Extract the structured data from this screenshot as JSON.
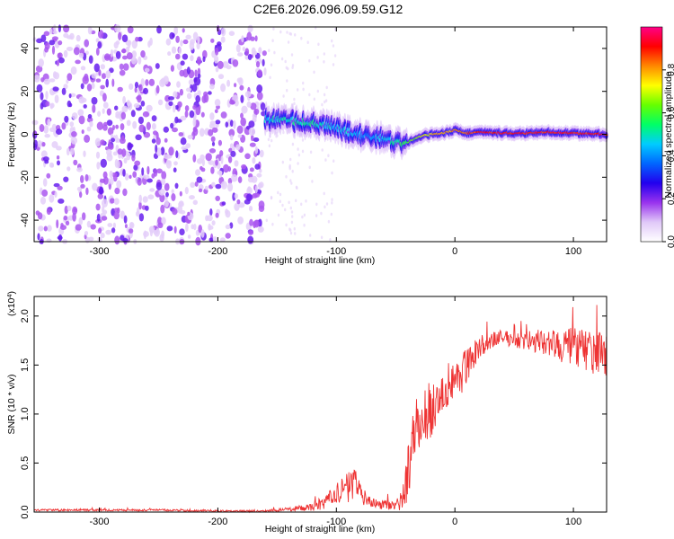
{
  "figure": {
    "title": "C2E6.2026.096.09.59.G12"
  },
  "chart_data": [
    {
      "type": "heatmap",
      "name": "spectrogram",
      "xlabel": "Height of straight line (km)",
      "ylabel": "Frequency (Hz)",
      "xlim": [
        -355,
        128
      ],
      "ylim": [
        -50,
        50
      ],
      "xticks": [
        -300,
        -200,
        -100,
        0,
        100
      ],
      "yticks": [
        -40,
        -20,
        0,
        20,
        40
      ],
      "xtick_labels": [
        "-300",
        "-200",
        "-100",
        "0",
        "100"
      ],
      "ytick_labels": [
        "-40",
        "-20",
        "0",
        "20",
        "40"
      ],
      "colorbar": {
        "label": "Normalized spectral amplitude",
        "range": [
          0,
          1
        ],
        "ticks": [
          0.0,
          0.2,
          0.4,
          0.6,
          0.8
        ],
        "tick_labels": [
          "0.0",
          "0.2",
          "0.4",
          "0.6",
          "0.8"
        ],
        "colormap": [
          "#ffffff",
          "#e0c8f8",
          "#9933ee",
          "#2200ee",
          "#0066ff",
          "#00ccff",
          "#00ff66",
          "#66ff00",
          "#ffff00",
          "#ff8800",
          "#ff0000",
          "#ff0088"
        ]
      },
      "noise_region": {
        "x_from": -355,
        "x_to": -160,
        "freq_from": -50,
        "freq_to": 50,
        "level": "low (0.1-0.3)"
      },
      "signal_track": {
        "x": [
          -160,
          -140,
          -120,
          -100,
          -90,
          -75,
          -60,
          -50,
          -45,
          -40,
          -30,
          -20,
          -10,
          0,
          10,
          20,
          40,
          60,
          80,
          100,
          128
        ],
        "freq": [
          7,
          6.5,
          5,
          3,
          1,
          -1,
          -2,
          -3.5,
          -4.5,
          -4,
          -1,
          0,
          0.5,
          2,
          0.5,
          1,
          0.5,
          0.5,
          1,
          0.5,
          0
        ],
        "amplitude": [
          0.45,
          0.5,
          0.5,
          0.45,
          0.45,
          0.4,
          0.45,
          0.5,
          0.55,
          0.6,
          0.7,
          0.75,
          0.8,
          0.8,
          0.85,
          0.9,
          0.9,
          0.9,
          0.9,
          0.9,
          0.9
        ]
      }
    },
    {
      "type": "line",
      "name": "snr",
      "xlabel": "Height of straight line (km)",
      "ylabel": "SNR (10 * v/v)",
      "y_multiplier": "(x10",
      "y_multiplier_exponent": "4",
      "y_multiplier_close": ")",
      "xlim": [
        -355,
        128
      ],
      "ylim": [
        0,
        2.2
      ],
      "xticks": [
        -300,
        -200,
        -100,
        0,
        100
      ],
      "yticks": [
        0.0,
        0.5,
        1.0,
        1.5,
        2.0
      ],
      "xtick_labels": [
        "-300",
        "-200",
        "-100",
        "0",
        "100"
      ],
      "ytick_labels": [
        "0.0",
        "0.5",
        "1.0",
        "1.5",
        "2.0"
      ],
      "color": "#ee3333",
      "series": [
        {
          "name": "SNR",
          "x": [
            -355,
            -300,
            -250,
            -200,
            -160,
            -140,
            -120,
            -110,
            -100,
            -95,
            -90,
            -85,
            -80,
            -75,
            -70,
            -65,
            -60,
            -55,
            -50,
            -45,
            -40,
            -35,
            -30,
            -25,
            -20,
            -15,
            -10,
            -5,
            0,
            5,
            10,
            15,
            20,
            30,
            40,
            50,
            60,
            70,
            80,
            90,
            100,
            110,
            120,
            128
          ],
          "mean": [
            0.02,
            0.02,
            0.02,
            0.01,
            0.01,
            0.03,
            0.05,
            0.1,
            0.18,
            0.22,
            0.25,
            0.3,
            0.22,
            0.12,
            0.1,
            0.08,
            0.08,
            0.07,
            0.06,
            0.12,
            0.35,
            0.8,
            0.95,
            1.0,
            1.05,
            1.1,
            1.25,
            1.3,
            1.35,
            1.4,
            1.5,
            1.6,
            1.68,
            1.75,
            1.78,
            1.76,
            1.75,
            1.74,
            1.72,
            1.7,
            1.68,
            1.65,
            1.62,
            1.6
          ],
          "noise": [
            0.01,
            0.01,
            0.01,
            0.01,
            0.01,
            0.02,
            0.04,
            0.08,
            0.12,
            0.14,
            0.15,
            0.18,
            0.12,
            0.08,
            0.06,
            0.05,
            0.05,
            0.05,
            0.05,
            0.1,
            0.25,
            0.3,
            0.3,
            0.3,
            0.28,
            0.25,
            0.25,
            0.25,
            0.22,
            0.2,
            0.2,
            0.15,
            0.12,
            0.08,
            0.08,
            0.08,
            0.1,
            0.12,
            0.15,
            0.18,
            0.2,
            0.22,
            0.22,
            0.22
          ]
        }
      ]
    }
  ]
}
